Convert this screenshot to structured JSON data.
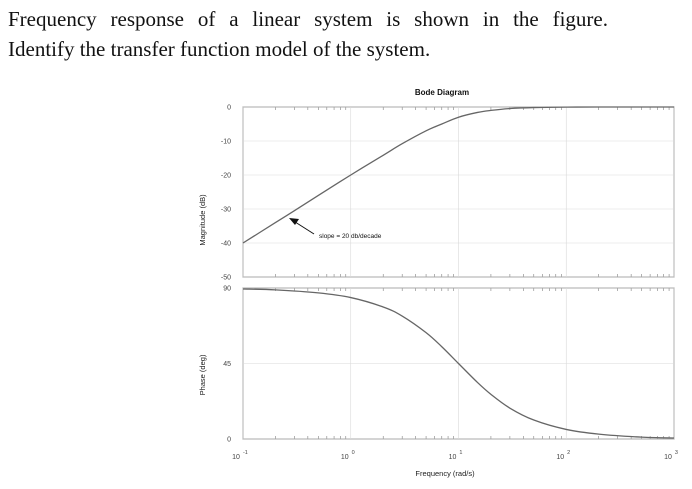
{
  "question": {
    "line1": "Frequency response of a linear system is shown in the figure.",
    "line2": "Identify the transfer function model of the system."
  },
  "chart_data": {
    "type": "line",
    "title": "Bode Diagram",
    "xlabel": "Frequency (rad/s)",
    "xscale": "log",
    "xlim": [
      0.1,
      1000
    ],
    "x_ticks": [
      {
        "base": "10",
        "exp": "-1"
      },
      {
        "base": "10",
        "exp": "0"
      },
      {
        "base": "10",
        "exp": "1"
      },
      {
        "base": "10",
        "exp": "2"
      },
      {
        "base": "10",
        "exp": "3"
      }
    ],
    "grid": true,
    "subplots": [
      {
        "name": "magnitude",
        "ylabel": "Magnitude (dB)",
        "ylim": [
          -50,
          0
        ],
        "yticks": [
          "0",
          "-10",
          "-20",
          "-30",
          "-40",
          "-50"
        ],
        "series": [
          {
            "x": [
              0.1,
              0.2,
              0.3,
              0.5,
              1,
              2,
              3,
              5,
              7,
              10,
              15,
              20,
              30,
              50,
              100,
              200,
              500,
              1000
            ],
            "values": [
              -40,
              -34,
              -30.5,
              -26,
              -20,
              -14.2,
              -10.8,
              -7,
              -5,
              -3,
              -1.6,
              -1,
              -0.45,
              -0.17,
              -0.04,
              -0.01,
              0,
              0
            ]
          }
        ],
        "annotation": "slope = 20 db/decade"
      },
      {
        "name": "phase",
        "ylabel": "Phase (deg)",
        "ylim": [
          0,
          90
        ],
        "yticks": [
          "90",
          "45",
          "0"
        ],
        "series": [
          {
            "x": [
              0.1,
              0.2,
              0.5,
              1,
              2,
              3,
              5,
              7,
              10,
              15,
              20,
              30,
              50,
              100,
              200,
              500,
              1000
            ],
            "values": [
              89.4,
              88.9,
              87.1,
              84.3,
              78.7,
              73.3,
              63.4,
              55,
              45,
              33.7,
              26.6,
              18.4,
              11.3,
              5.7,
              2.9,
              1.1,
              0.6
            ]
          }
        ]
      }
    ]
  }
}
